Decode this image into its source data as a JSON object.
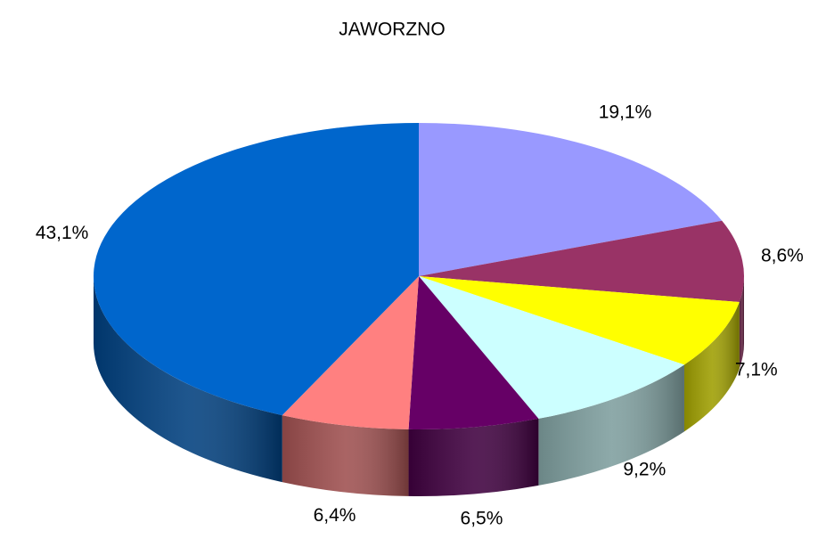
{
  "chart_data": {
    "type": "pie3d",
    "title": "JAWORZNO",
    "values": [
      19.1,
      8.6,
      7.1,
      9.2,
      6.5,
      6.4,
      43.1
    ],
    "value_labels": [
      "19,1%",
      "8,6%",
      "7,1%",
      "9,2%",
      "6,5%",
      "6,4%",
      "43,1%"
    ],
    "colors": [
      "#9999ff",
      "#993366",
      "#ffff00",
      "#ccffff",
      "#660066",
      "#ff8080",
      "#0066cc"
    ]
  }
}
